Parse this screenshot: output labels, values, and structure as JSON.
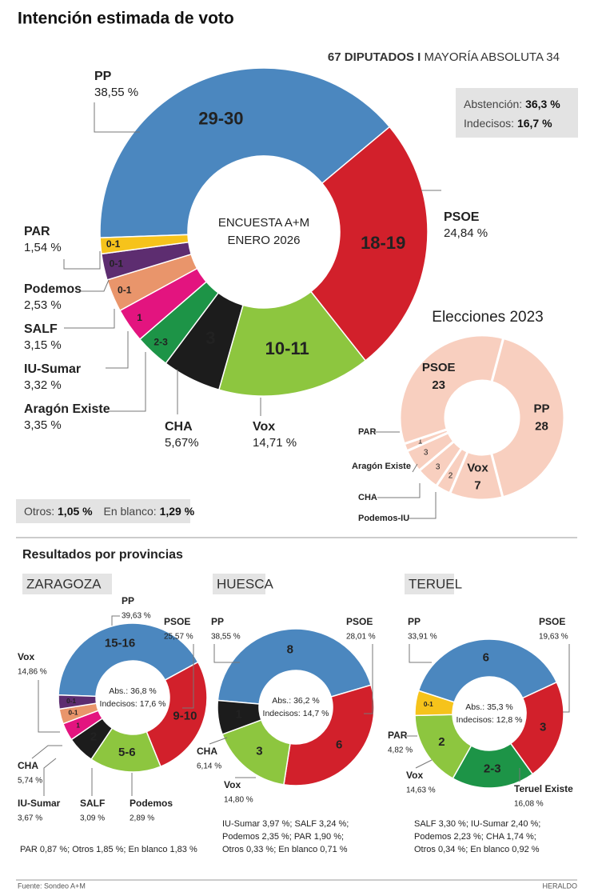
{
  "header": {
    "title": "Intención estimada de voto",
    "subtitle": [
      "67 DIPUTADOS I",
      "MAYORÍA ABSOLUTA 34"
    ]
  },
  "summary": {
    "abstention": [
      "Abstención:",
      "36,3 %"
    ],
    "undecided": [
      "Indecisos:",
      "16,7 %"
    ]
  },
  "others": [
    "Otros:",
    "1,05 %",
    "En blanco:",
    "1,29 %"
  ],
  "provinces_title": "Resultados por provincias",
  "source": "Fuente: Sondeo A+M",
  "publisher": "HERALDO",
  "chart_data": [
    {
      "type": "donut",
      "center_label": [
        "ENCUESTA A+M",
        "ENERO 2026"
      ],
      "categories": [
        "PP",
        "PSOE",
        "Vox",
        "CHA",
        "Aragón Existe",
        "IU-Sumar",
        "SALF",
        "Podemos",
        "PAR"
      ],
      "values": [
        38.55,
        24.84,
        14.71,
        5.67,
        3.35,
        3.32,
        3.15,
        2.53,
        1.54
      ],
      "value_labels": [
        "38,55 %",
        "24,84 %",
        "14,71 %",
        "5,67%",
        "3,35 %",
        "3,32 %",
        "3,15 %",
        "2,53 %",
        "1,54 %"
      ],
      "seat_labels": [
        "29-30",
        "18-19",
        "10-11",
        "3",
        "2-3",
        "1",
        "0-1",
        "0-1",
        "0-1"
      ],
      "colors": [
        "#4b87bf",
        "#d2202b",
        "#8dc63f",
        "#1c1c1c",
        "#1d9447",
        "#e3147f",
        "#e9956b",
        "#5d2d70",
        "#f6c31b"
      ]
    },
    {
      "type": "donut",
      "title": "Elecciones 2023",
      "categories": [
        "PP",
        "Vox",
        "Podemos-IU",
        "CHA",
        "Aragón Existe",
        "PAR",
        "PSOE"
      ],
      "values": [
        28,
        7,
        2,
        3,
        3,
        1,
        23
      ],
      "color": "#f8cfbf"
    },
    {
      "type": "donut",
      "title": "ZARAGOZA",
      "center_label": [
        "Abs.: 36,8 %",
        "Indecisos: 17,6 %"
      ],
      "categories": [
        "PP",
        "PSOE",
        "Vox",
        "CHA",
        "IU-Sumar",
        "SALF",
        "Podemos"
      ],
      "values": [
        39.63,
        25.57,
        14.86,
        5.74,
        3.67,
        3.09,
        2.89
      ],
      "value_labels": [
        "39,63 %",
        "25,57 %",
        "14,86 %",
        "5,74 %",
        "3,67 %",
        "3,09 %",
        "2,89 %"
      ],
      "seat_labels": [
        "15-16",
        "9-10",
        "5-6",
        "2",
        "1",
        "0-1",
        "0-1"
      ],
      "colors": [
        "#4b87bf",
        "#d2202b",
        "#8dc63f",
        "#1c1c1c",
        "#e3147f",
        "#e9956b",
        "#5d2d70"
      ],
      "notes": [
        "PAR 0,87 %; Otros 1,85 %; En blanco 1,83 %"
      ]
    },
    {
      "type": "donut",
      "title": "HUESCA",
      "center_label": [
        "Abs.: 36,2 %",
        "Indecisos: 14,7 %"
      ],
      "categories": [
        "PP",
        "PSOE",
        "Vox",
        "CHA"
      ],
      "values": [
        38.55,
        28.01,
        14.8,
        6.14
      ],
      "value_labels": [
        "38,55 %",
        "28,01 %",
        "14,80 %",
        "6,14 %"
      ],
      "seat_labels": [
        "8",
        "6",
        "3",
        "1"
      ],
      "colors": [
        "#4b87bf",
        "#d2202b",
        "#8dc63f",
        "#1c1c1c"
      ],
      "notes": [
        "IU-Sumar 3,97 %; SALF 3,24 %;",
        "Podemos 2,35 %; PAR 1,90 %;",
        "Otros 0,33 %; En blanco 0,71 %"
      ]
    },
    {
      "type": "donut",
      "title": "TERUEL",
      "center_label": [
        "Abs.: 35,3 %",
        "Indecisos: 12,8 %"
      ],
      "categories": [
        "PP",
        "PSOE",
        "Teruel Existe",
        "Vox",
        "PAR"
      ],
      "values": [
        33.91,
        19.63,
        16.08,
        14.63,
        4.82
      ],
      "value_labels": [
        "33,91 %",
        "19,63 %",
        "16,08 %",
        "14,63 %",
        "4,82 %"
      ],
      "seat_labels": [
        "6",
        "3",
        "2-3",
        "2",
        "0-1"
      ],
      "colors": [
        "#4b87bf",
        "#d2202b",
        "#1d9447",
        "#8dc63f",
        "#f6c31b"
      ],
      "notes": [
        "SALF 3,30 %; IU-Sumar 2,40 %;",
        "Podemos 2,23 %; CHA 1,74 %;",
        "Otros 0,34 %; En blanco 0,92 %"
      ]
    }
  ]
}
